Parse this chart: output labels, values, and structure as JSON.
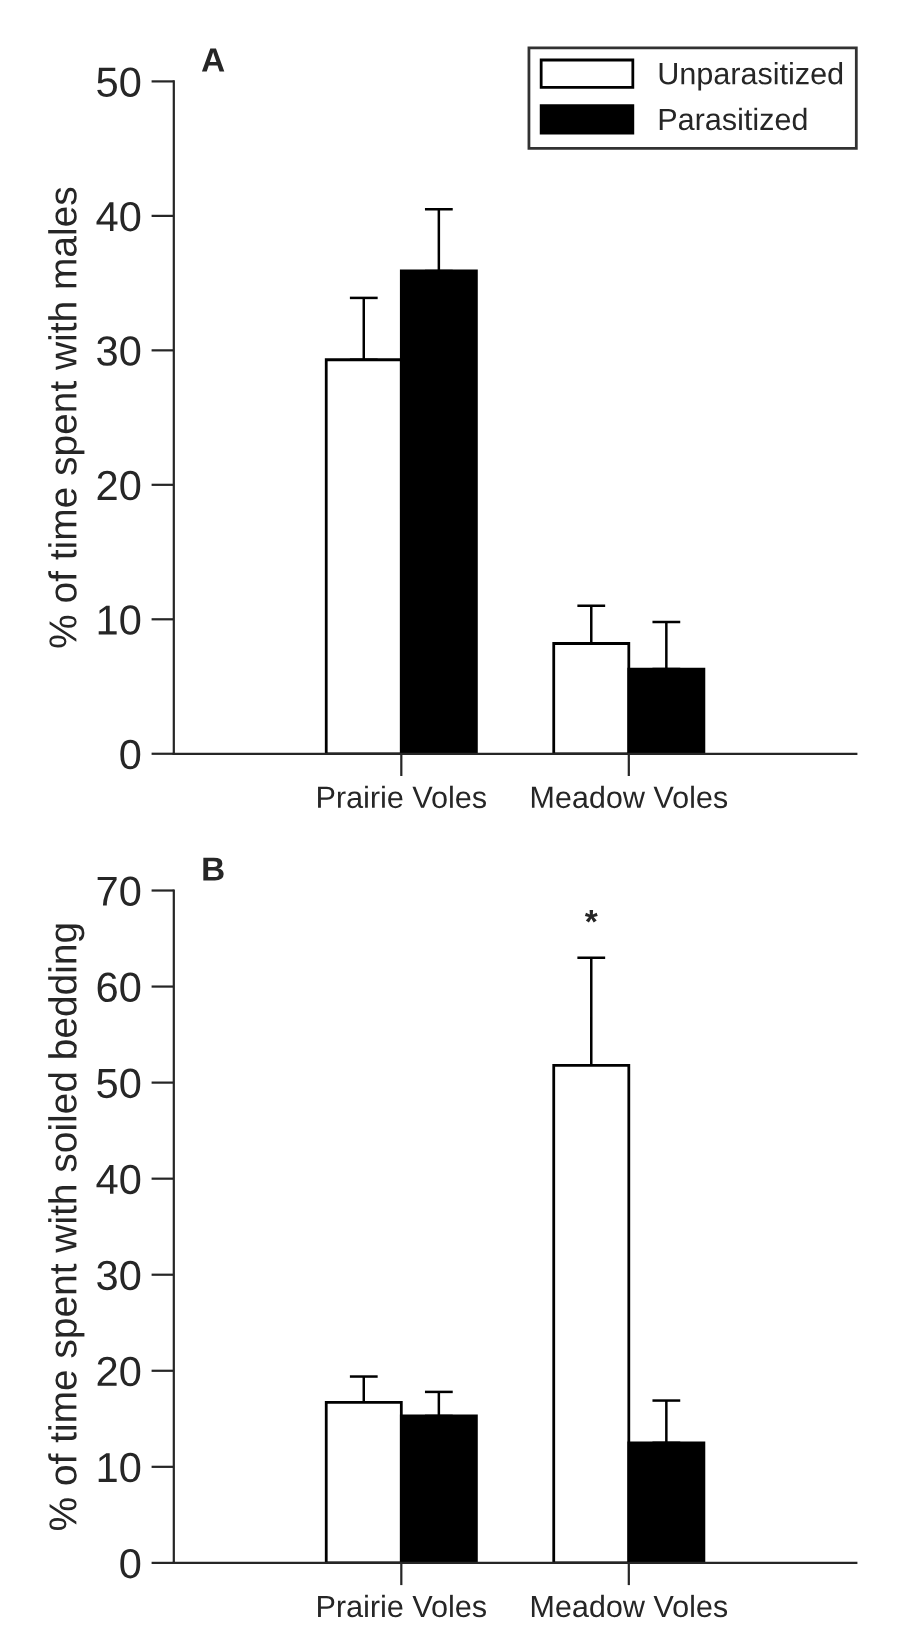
{
  "chart_data": [
    {
      "type": "bar",
      "title": "A",
      "ylabel": "% of time spent with males",
      "categories": [
        "Prairie Voles",
        "Meadow Voles"
      ],
      "series": [
        {
          "name": "Unparasitized",
          "color": "#ffffff",
          "values": [
            29.3,
            8.2
          ],
          "errors": [
            [
              29.3,
              33.9
            ],
            [
              8.2,
              11.0
            ]
          ]
        },
        {
          "name": "Parasitized",
          "color": "#000000",
          "values": [
            35.9,
            6.3
          ],
          "errors": [
            [
              35.9,
              40.5
            ],
            [
              6.3,
              9.8
            ]
          ]
        }
      ],
      "ylim": [
        0,
        50
      ],
      "yticks": [
        0,
        10,
        20,
        30,
        40,
        50
      ],
      "grid": false,
      "legend": "top right"
    },
    {
      "type": "bar",
      "title": "B",
      "ylabel": "% of time spent with soiled bedding",
      "categories": [
        "Prairie Voles",
        "Meadow Voles"
      ],
      "series": [
        {
          "color": "#ffffff",
          "values": [
            16.7,
            51.8
          ],
          "errors": [
            [
              16.7,
              19.4
            ],
            [
              51.8,
              63.0
            ]
          ]
        },
        {
          "color": "#000000",
          "values": [
            15.3,
            12.5
          ],
          "errors": [
            [
              15.3,
              17.8
            ],
            [
              12.5,
              16.9
            ]
          ]
        }
      ],
      "ylim": [
        0,
        70
      ],
      "yticks": [
        0,
        10,
        20,
        30,
        40,
        50,
        60,
        70
      ],
      "grid": false,
      "annotations": [
        "*"
      ]
    }
  ]
}
